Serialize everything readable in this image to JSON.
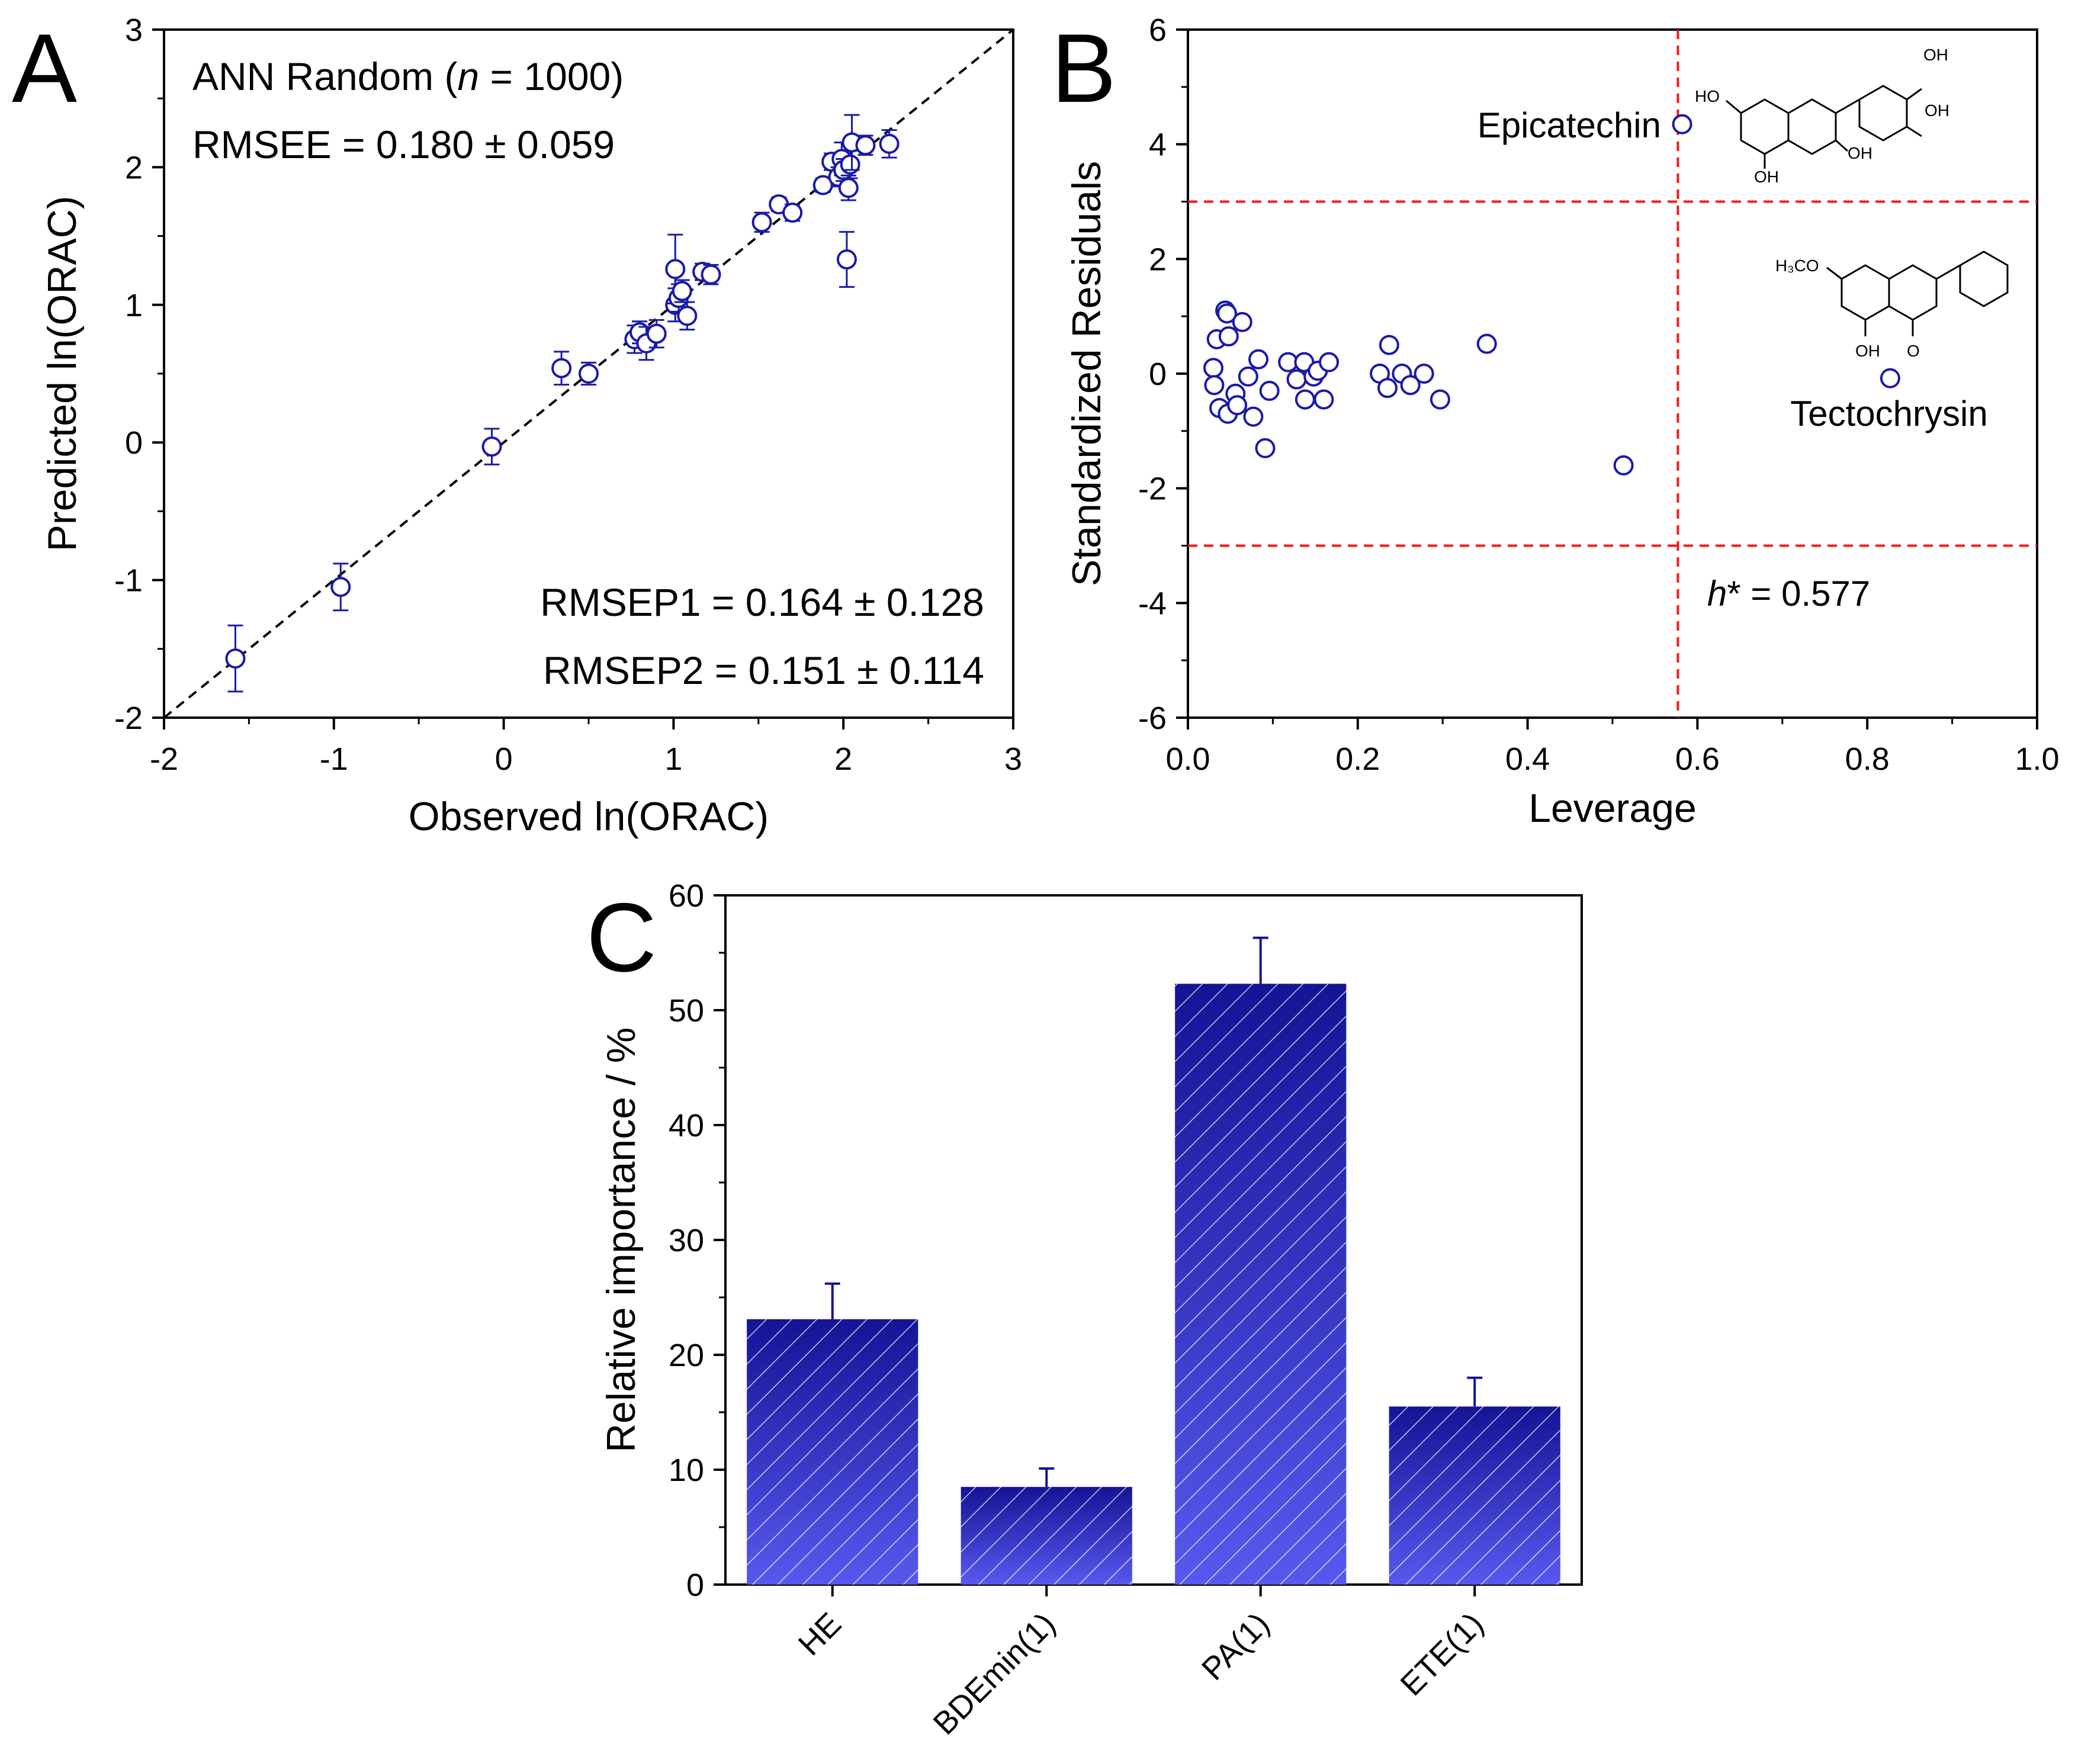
{
  "colors": {
    "marker": "#1a1aaa",
    "bar_top": "#141496",
    "bar_bottom": "#5858ee",
    "threshold": "#ee1c1c",
    "axis": "#000000"
  },
  "chart_data": [
    {
      "panel": "A",
      "type": "scatter",
      "xlabel": "Observed ln(ORAC)",
      "ylabel": "Predicted ln(ORAC)",
      "xlim": [
        -2,
        3
      ],
      "ylim": [
        -2,
        3
      ],
      "xticks": [
        "-2",
        "-1",
        "0",
        "1",
        "2",
        "3"
      ],
      "yticks": [
        "-2",
        "-1",
        "0",
        "1",
        "2",
        "3"
      ],
      "annotations": {
        "model_prefix": "ANN Random (",
        "model_n": "n",
        "model_suffix": " = 1000)",
        "rmsee": "RMSEE = 0.180 ± 0.059",
        "rmsep1": "RMSEP1 = 0.164 ± 0.128",
        "rmsep2": "RMSEP2 = 0.151 ± 0.114"
      },
      "reference_line": "y = x (dashed)",
      "points": [
        {
          "x": -1.58,
          "y": -1.57,
          "err": 0.24
        },
        {
          "x": -0.96,
          "y": -1.05,
          "err": 0.17
        },
        {
          "x": -0.07,
          "y": -0.03,
          "err": 0.13
        },
        {
          "x": 0.34,
          "y": 0.54,
          "err": 0.12
        },
        {
          "x": 0.5,
          "y": 0.5,
          "err": 0.08
        },
        {
          "x": 0.77,
          "y": 0.75,
          "err": 0.1
        },
        {
          "x": 0.8,
          "y": 0.8,
          "err": 0.08
        },
        {
          "x": 0.84,
          "y": 0.72,
          "err": 0.12
        },
        {
          "x": 0.9,
          "y": 0.79,
          "err": 0.1
        },
        {
          "x": 1.01,
          "y": 1.0,
          "err": 0.12
        },
        {
          "x": 1.01,
          "y": 1.26,
          "err": 0.25
        },
        {
          "x": 1.03,
          "y": 1.05,
          "err": 0.1
        },
        {
          "x": 1.05,
          "y": 1.1,
          "err": 0.08
        },
        {
          "x": 1.08,
          "y": 0.92,
          "err": 0.1
        },
        {
          "x": 1.17,
          "y": 1.24,
          "err": 0.06
        },
        {
          "x": 1.22,
          "y": 1.22,
          "err": 0.07
        },
        {
          "x": 1.52,
          "y": 1.6,
          "err": 0.07
        },
        {
          "x": 1.62,
          "y": 1.73,
          "err": 0.05
        },
        {
          "x": 1.7,
          "y": 1.67,
          "err": 0.06
        },
        {
          "x": 1.88,
          "y": 1.87,
          "err": 0.05
        },
        {
          "x": 1.93,
          "y": 2.04,
          "err": 0.06
        },
        {
          "x": 1.97,
          "y": 1.93,
          "err": 0.07
        },
        {
          "x": 1.99,
          "y": 2.06,
          "err": 0.12
        },
        {
          "x": 2.0,
          "y": 1.98,
          "err": 0.08
        },
        {
          "x": 2.02,
          "y": 1.33,
          "err": 0.2
        },
        {
          "x": 2.03,
          "y": 1.85,
          "err": 0.09
        },
        {
          "x": 2.04,
          "y": 2.02,
          "err": 0.1
        },
        {
          "x": 2.05,
          "y": 2.18,
          "err": 0.2
        },
        {
          "x": 2.13,
          "y": 2.16,
          "err": 0.07
        },
        {
          "x": 2.27,
          "y": 2.17,
          "err": 0.1
        }
      ]
    },
    {
      "panel": "B",
      "type": "scatter",
      "xlabel": "Leverage",
      "ylabel": "Standardized Residuals",
      "xlim": [
        0.0,
        1.0
      ],
      "ylim": [
        -6,
        6
      ],
      "xticks": [
        "0.0",
        "0.2",
        "0.4",
        "0.6",
        "0.8",
        "1.0"
      ],
      "yticks": [
        "-6",
        "-4",
        "-2",
        "0",
        "2",
        "4",
        "6"
      ],
      "thresholds": {
        "h_star": 0.577,
        "residual_upper": 3,
        "residual_lower": -3
      },
      "annotations": {
        "h_label_symbol": "h",
        "h_label_rest": "* = 0.577",
        "epicatechin": "Epicatechin",
        "tectochrysin": "Tectochrysin"
      },
      "structure_labels": {
        "epicatechin": [
          "OH",
          "HO",
          "OH",
          "OH",
          "OH"
        ],
        "tectochrysin": [
          "H₃CO",
          "OH",
          "O"
        ]
      },
      "points": [
        {
          "x": 0.03,
          "y": 0.1
        },
        {
          "x": 0.031,
          "y": -0.2
        },
        {
          "x": 0.034,
          "y": 0.6
        },
        {
          "x": 0.037,
          "y": -0.6
        },
        {
          "x": 0.044,
          "y": 1.1
        },
        {
          "x": 0.046,
          "y": 1.05
        },
        {
          "x": 0.048,
          "y": 0.65
        },
        {
          "x": 0.047,
          "y": -0.7
        },
        {
          "x": 0.056,
          "y": -0.35
        },
        {
          "x": 0.058,
          "y": -0.55
        },
        {
          "x": 0.064,
          "y": 0.9
        },
        {
          "x": 0.071,
          "y": -0.05
        },
        {
          "x": 0.077,
          "y": -0.75
        },
        {
          "x": 0.083,
          "y": 0.25
        },
        {
          "x": 0.091,
          "y": -1.3
        },
        {
          "x": 0.096,
          "y": -0.3
        },
        {
          "x": 0.118,
          "y": 0.2
        },
        {
          "x": 0.128,
          "y": -0.1
        },
        {
          "x": 0.137,
          "y": 0.2
        },
        {
          "x": 0.138,
          "y": -0.45
        },
        {
          "x": 0.148,
          "y": -0.05
        },
        {
          "x": 0.153,
          "y": 0.05
        },
        {
          "x": 0.16,
          "y": -0.45
        },
        {
          "x": 0.166,
          "y": 0.2
        },
        {
          "x": 0.226,
          "y": 0.0
        },
        {
          "x": 0.235,
          "y": -0.25
        },
        {
          "x": 0.237,
          "y": 0.5
        },
        {
          "x": 0.252,
          "y": 0.0
        },
        {
          "x": 0.262,
          "y": -0.2
        },
        {
          "x": 0.278,
          "y": 0.0
        },
        {
          "x": 0.297,
          "y": -0.45
        },
        {
          "x": 0.352,
          "y": 0.52
        },
        {
          "x": 0.513,
          "y": -1.6
        },
        {
          "x": 0.582,
          "y": 4.35
        },
        {
          "x": 0.827,
          "y": -0.08
        }
      ]
    },
    {
      "panel": "C",
      "type": "bar",
      "ylabel": "Relative importance / %",
      "ylim": [
        0,
        60
      ],
      "yticks": [
        "0",
        "10",
        "20",
        "30",
        "40",
        "50",
        "60"
      ],
      "categories": [
        "HE",
        "BDEmin(1)",
        "PA(1)",
        "ETE(1)"
      ],
      "values": [
        23.1,
        8.5,
        52.3,
        15.5
      ],
      "errors": [
        3.1,
        1.6,
        4.0,
        2.5
      ]
    }
  ]
}
